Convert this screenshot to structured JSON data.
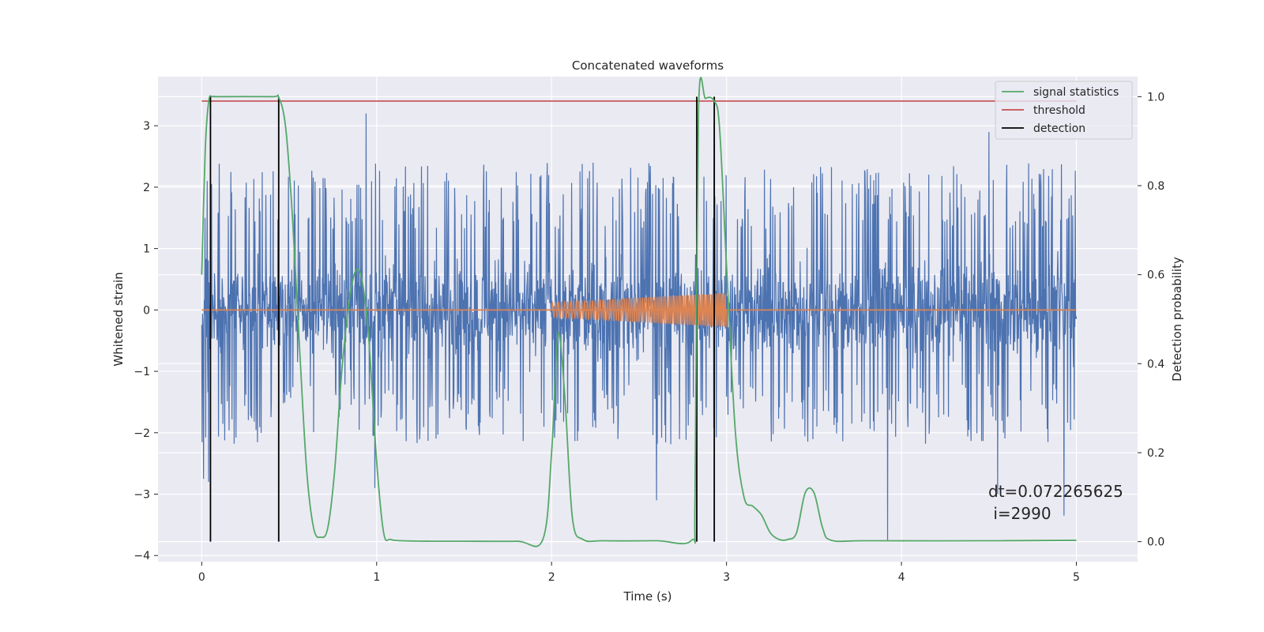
{
  "chart_data": {
    "type": "line",
    "title": "Concatenated waveforms",
    "xlabel": "Time (s)",
    "ylabel": "Whitened strain",
    "y2label": "Detection probability",
    "xlim": [
      -0.25,
      5.35
    ],
    "ylim": [
      -4.1,
      3.8
    ],
    "y2lim": [
      -0.045,
      1.045
    ],
    "xticks": [
      0,
      1,
      2,
      3,
      4,
      5
    ],
    "yticks": [
      -4,
      -3,
      -2,
      -1,
      0,
      1,
      2,
      3
    ],
    "y2ticks": [
      0.0,
      0.2,
      0.4,
      0.6,
      0.8,
      1.0
    ],
    "grid": true,
    "legend_position": "top-right",
    "legend": [
      "signal statistics",
      "threshold",
      "detection"
    ],
    "colors": {
      "strain": "#4c72b0",
      "injection": "#dd8452",
      "signal_statistics": "#55a868",
      "threshold": "#c44e52",
      "detection": "#000000",
      "background": "#eaeaf2"
    },
    "strain": {
      "x_range": [
        0,
        5
      ],
      "typical_min": -2.2,
      "typical_max": 2.4,
      "peaks": [
        {
          "x": 0.01,
          "y": 1.4
        },
        {
          "x": 0.01,
          "y": -2.75
        },
        {
          "x": 0.04,
          "y": -2.8
        },
        {
          "x": 0.94,
          "y": 3.2
        },
        {
          "x": 0.99,
          "y": -2.9
        },
        {
          "x": 3.92,
          "y": -3.75
        },
        {
          "x": 4.5,
          "y": 2.9
        },
        {
          "x": 4.93,
          "y": -3.35
        },
        {
          "x": 2.93,
          "y": 3.05
        },
        {
          "x": 2.6,
          "y": -3.1
        },
        {
          "x": 4.55,
          "y": -3.0
        }
      ]
    },
    "injection": {
      "x_start": 2.0,
      "x_end": 3.0,
      "amplitude_start": 0.12,
      "amplitude_end": 0.28
    },
    "signal_statistics": {
      "x": [
        0,
        0.02,
        0.04,
        0.06,
        0.08,
        0.1,
        0.4,
        0.44,
        0.48,
        0.52,
        0.56,
        0.6,
        0.64,
        0.68,
        0.72,
        0.76,
        0.8,
        0.85,
        0.9,
        0.95,
        1.0,
        1.04,
        1.08,
        1.15,
        1.3,
        1.5,
        1.8,
        1.95,
        2.0,
        2.03,
        2.05,
        2.08,
        2.12,
        2.18,
        2.3,
        2.6,
        2.8,
        2.82,
        2.84,
        2.88,
        2.93,
        2.96,
        3.0,
        3.05,
        3.1,
        3.15,
        3.2,
        3.25,
        3.3,
        3.35,
        3.4,
        3.45,
        3.5,
        3.55,
        3.6,
        3.8,
        4.5,
        5.0
      ],
      "y": [
        0.6,
        0.88,
        0.99,
        1.0,
        1.0,
        1.0,
        1.0,
        0.998,
        0.93,
        0.72,
        0.43,
        0.16,
        0.03,
        0.01,
        0.03,
        0.16,
        0.38,
        0.56,
        0.61,
        0.48,
        0.18,
        0.02,
        0.005,
        0.002,
        0.001,
        0.001,
        0.001,
        0.005,
        0.2,
        0.44,
        0.45,
        0.3,
        0.05,
        0.005,
        0.002,
        0.002,
        0.003,
        0.1,
        0.97,
        0.996,
        0.99,
        0.93,
        0.62,
        0.25,
        0.1,
        0.08,
        0.06,
        0.02,
        0.005,
        0.005,
        0.02,
        0.11,
        0.11,
        0.03,
        0.003,
        0.002,
        0.002,
        0.003
      ]
    },
    "threshold": 0.99,
    "detections": [
      0.05,
      0.44,
      2.83,
      2.93
    ],
    "annotation": {
      "line1": "dt=0.072265625",
      "line2": " i=2990"
    }
  }
}
